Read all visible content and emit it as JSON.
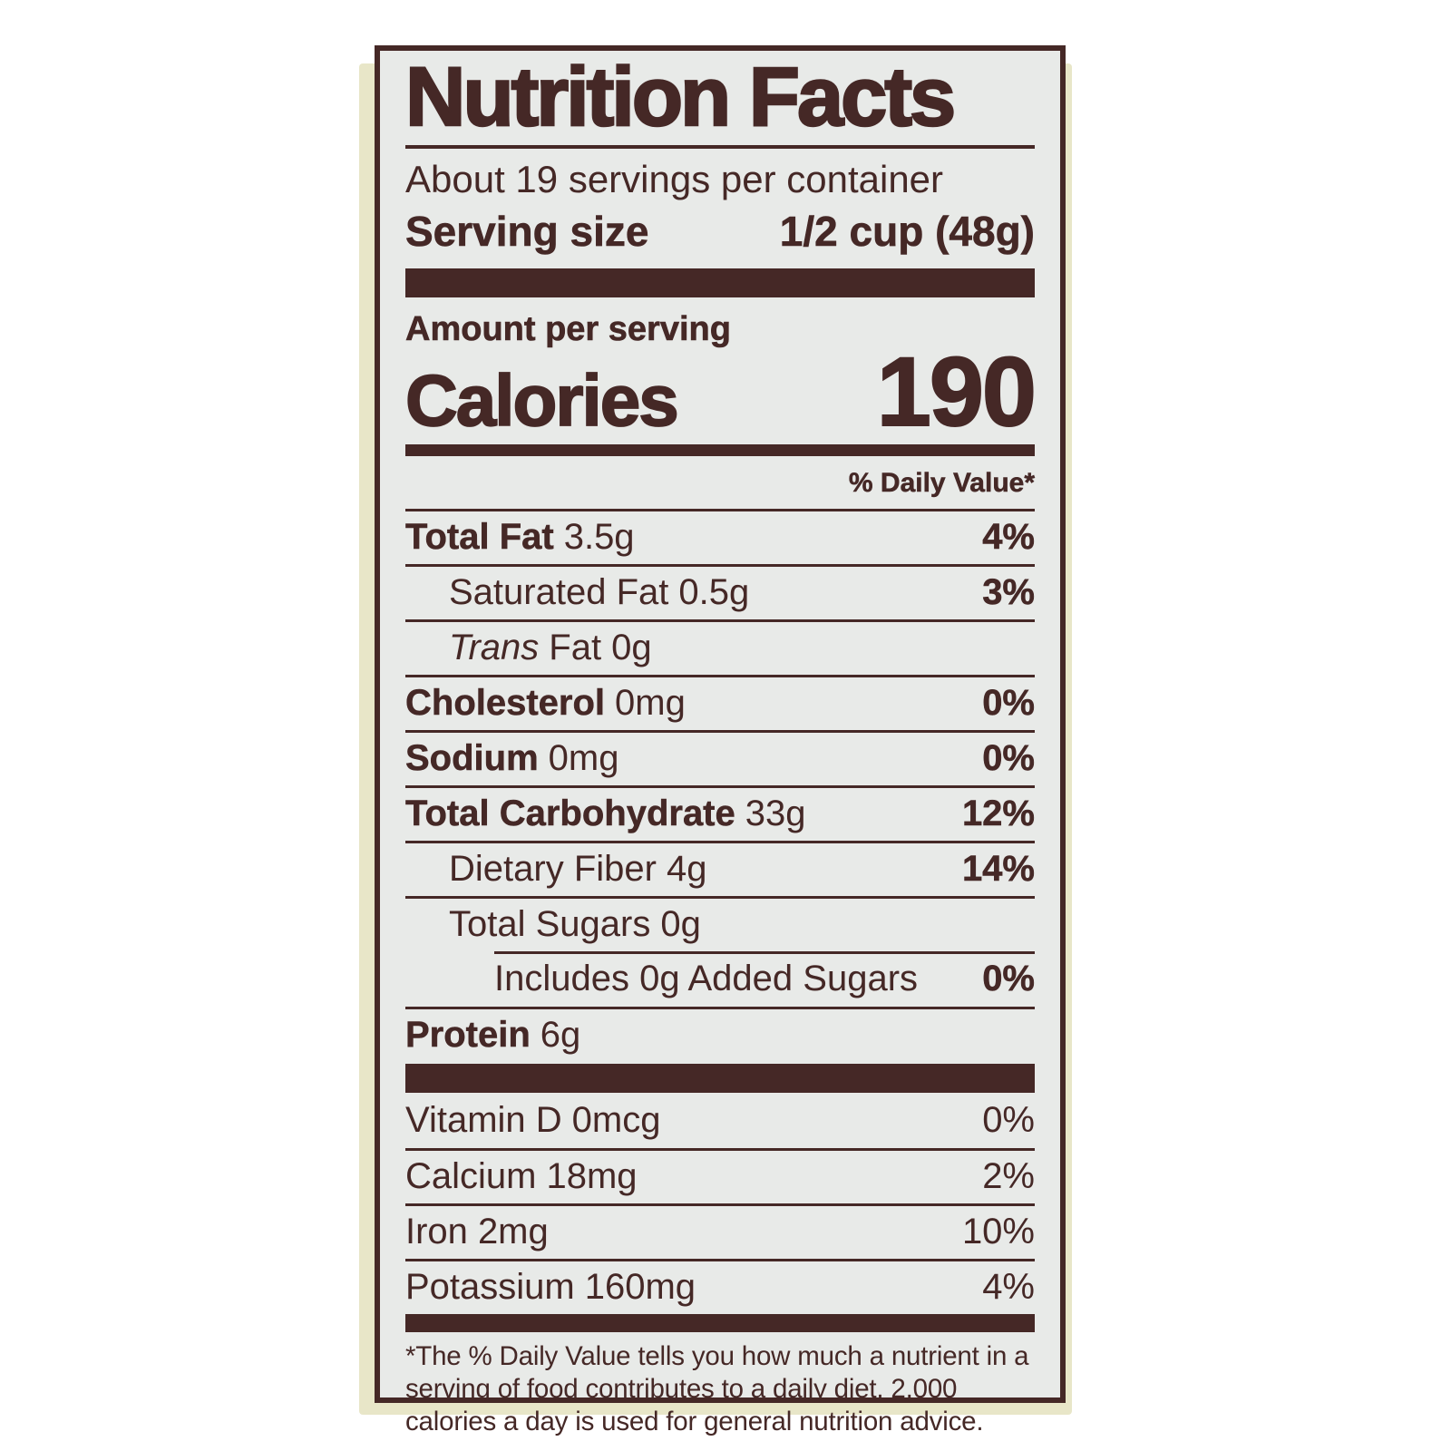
{
  "label": {
    "title": "Nutrition Facts",
    "servings_per_container": "About 19 servings per container",
    "serving_size_label": "Serving size",
    "serving_size_value": "1/2 cup (48g)",
    "amount_per_serving": "Amount per serving",
    "calories_label": "Calories",
    "calories_value": "190",
    "daily_value_header": "% Daily Value*",
    "nutrients": [
      {
        "name": "Total Fat",
        "amount": "3.5g",
        "dv": "4%"
      },
      {
        "name": "Saturated Fat",
        "amount": "0.5g",
        "dv": "3%"
      },
      {
        "name_italic": "Trans",
        "name": "Fat",
        "amount": "0g",
        "dv": ""
      },
      {
        "name": "Cholesterol",
        "amount": "0mg",
        "dv": "0%"
      },
      {
        "name": "Sodium",
        "amount": "0mg",
        "dv": "0%"
      },
      {
        "name": "Total Carbohydrate",
        "amount": "33g",
        "dv": "12%"
      },
      {
        "name": "Dietary Fiber",
        "amount": "4g",
        "dv": "14%"
      },
      {
        "name": "Total Sugars",
        "amount": "0g",
        "dv": ""
      },
      {
        "name": "Includes 0g Added Sugars",
        "amount": "",
        "dv": "0%"
      },
      {
        "name": "Protein",
        "amount": "6g",
        "dv": ""
      }
    ],
    "vitamins": [
      {
        "name": "Vitamin D",
        "amount": "0mcg",
        "dv": "0%"
      },
      {
        "name": "Calcium",
        "amount": "18mg",
        "dv": "2%"
      },
      {
        "name": "Iron",
        "amount": "2mg",
        "dv": "10%"
      },
      {
        "name": "Potassium",
        "amount": "160mg",
        "dv": "4%"
      }
    ],
    "footnote": "*The % Daily Value tells you how much a nutrient in a serving of food contributes to a daily diet. 2,000 calories a day is used for general nutrition advice."
  },
  "colors": {
    "ink": "#452826",
    "label_background": "#e8eae8",
    "package_background": "#e8e6c8"
  }
}
